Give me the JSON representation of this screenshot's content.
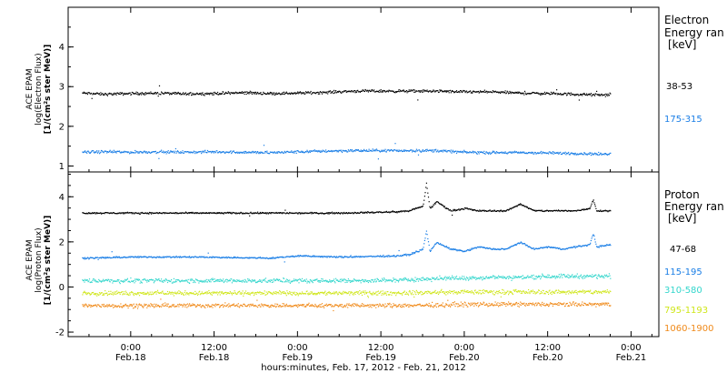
{
  "figure": {
    "xlabel": "hours:minutes, Feb. 17, 2012 - Feb. 21, 2012",
    "xticks": [
      {
        "hour": 0,
        "time": "0:00",
        "date": "Feb.18"
      },
      {
        "hour": 12,
        "time": "12:00",
        "date": "Feb.18"
      },
      {
        "hour": 24,
        "time": "0:00",
        "date": "Feb.19"
      },
      {
        "hour": 36,
        "time": "12:00",
        "date": "Feb.19"
      },
      {
        "hour": 48,
        "time": "0:00",
        "date": "Feb.20"
      },
      {
        "hour": 60,
        "time": "12:00",
        "date": "Feb.20"
      },
      {
        "hour": 72,
        "time": "0:00",
        "date": "Feb.21"
      }
    ]
  },
  "chart_data": [
    {
      "type": "scatter",
      "panel": "electron",
      "ylabel_lines": [
        "ACE EPAM",
        "log(Electron Flux)",
        "[1/(cm²s ster MeV)]"
      ],
      "ylim": [
        0.85,
        5.0
      ],
      "yticks": [
        1,
        2,
        3,
        4
      ],
      "xlim_hours": [
        -9,
        76
      ],
      "legend_title_lines": [
        "Electron",
        "Energy ran",
        "[keV]"
      ],
      "series": [
        {
          "name": "38-53",
          "color": "#000000",
          "hours": [
            -7,
            -4,
            0,
            4,
            8,
            12,
            16,
            20,
            24,
            28,
            32,
            36,
            40,
            44,
            48,
            52,
            56,
            60,
            64,
            68,
            69
          ],
          "values": [
            2.85,
            2.82,
            2.84,
            2.85,
            2.83,
            2.84,
            2.86,
            2.84,
            2.85,
            2.87,
            2.9,
            2.9,
            2.9,
            2.9,
            2.88,
            2.88,
            2.85,
            2.84,
            2.82,
            2.8,
            2.82
          ]
        },
        {
          "name": "175-315",
          "color": "#1a7ee6",
          "hours": [
            -7,
            -4,
            0,
            4,
            8,
            12,
            16,
            20,
            24,
            28,
            32,
            36,
            40,
            44,
            48,
            52,
            56,
            60,
            64,
            68,
            69
          ],
          "values": [
            1.36,
            1.37,
            1.36,
            1.37,
            1.36,
            1.37,
            1.36,
            1.35,
            1.37,
            1.39,
            1.4,
            1.4,
            1.4,
            1.4,
            1.36,
            1.35,
            1.35,
            1.34,
            1.33,
            1.31,
            1.33
          ]
        }
      ]
    },
    {
      "type": "scatter",
      "panel": "proton",
      "ylabel_lines": [
        "ACE EPAM",
        "log(Proton Flux)",
        "[1/(cm²s ster MeV)]"
      ],
      "ylim": [
        -2.2,
        5.1
      ],
      "yticks": [
        -2,
        0,
        2,
        4
      ],
      "xlim_hours": [
        -9,
        76
      ],
      "legend_title_lines": [
        "Proton",
        "Energy ran",
        "[keV]"
      ],
      "series": [
        {
          "name": "47-68",
          "color": "#000000",
          "hours": [
            -7,
            0,
            10,
            20,
            30,
            38,
            40,
            42,
            42.5,
            43,
            44,
            46,
            48,
            50,
            52,
            54,
            56,
            58,
            60,
            62,
            64,
            66,
            66.5,
            67,
            69
          ],
          "values": [
            3.3,
            3.3,
            3.3,
            3.3,
            3.3,
            3.35,
            3.4,
            3.6,
            4.6,
            3.5,
            3.8,
            3.4,
            3.5,
            3.4,
            3.4,
            3.4,
            3.7,
            3.4,
            3.4,
            3.4,
            3.4,
            3.5,
            3.9,
            3.4,
            3.4
          ]
        },
        {
          "name": "115-195",
          "color": "#1a7ee6",
          "hours": [
            -7,
            0,
            10,
            20,
            24,
            30,
            38,
            40,
            42,
            42.5,
            43,
            44,
            46,
            48,
            50,
            52,
            54,
            56,
            58,
            60,
            62,
            64,
            66,
            66.5,
            67,
            69
          ],
          "values": [
            1.3,
            1.35,
            1.35,
            1.3,
            1.4,
            1.35,
            1.4,
            1.45,
            1.7,
            2.5,
            1.6,
            2.0,
            1.7,
            1.6,
            1.8,
            1.7,
            1.7,
            2.0,
            1.7,
            1.8,
            1.7,
            1.8,
            1.9,
            2.4,
            1.8,
            1.9
          ]
        },
        {
          "name": "310-580",
          "color": "#33d6cc",
          "hours": [
            -7,
            0,
            10,
            20,
            30,
            38,
            44,
            48,
            52,
            56,
            60,
            64,
            69
          ],
          "values": [
            0.3,
            0.3,
            0.3,
            0.3,
            0.3,
            0.32,
            0.4,
            0.42,
            0.45,
            0.45,
            0.5,
            0.5,
            0.5
          ]
        },
        {
          "name": "795-1193",
          "color": "#cfe61a",
          "hours": [
            -7,
            0,
            10,
            20,
            30,
            38,
            44,
            48,
            52,
            56,
            60,
            64,
            69
          ],
          "values": [
            -0.25,
            -0.25,
            -0.25,
            -0.25,
            -0.25,
            -0.25,
            -0.22,
            -0.2,
            -0.2,
            -0.2,
            -0.2,
            -0.2,
            -0.2
          ]
        },
        {
          "name": "1060-1900",
          "color": "#f08a1a",
          "hours": [
            -7,
            0,
            10,
            20,
            30,
            38,
            44,
            48,
            52,
            56,
            60,
            64,
            69
          ],
          "values": [
            -0.8,
            -0.8,
            -0.8,
            -0.8,
            -0.8,
            -0.8,
            -0.78,
            -0.75,
            -0.75,
            -0.75,
            -0.75,
            -0.75,
            -0.75
          ]
        }
      ]
    }
  ]
}
